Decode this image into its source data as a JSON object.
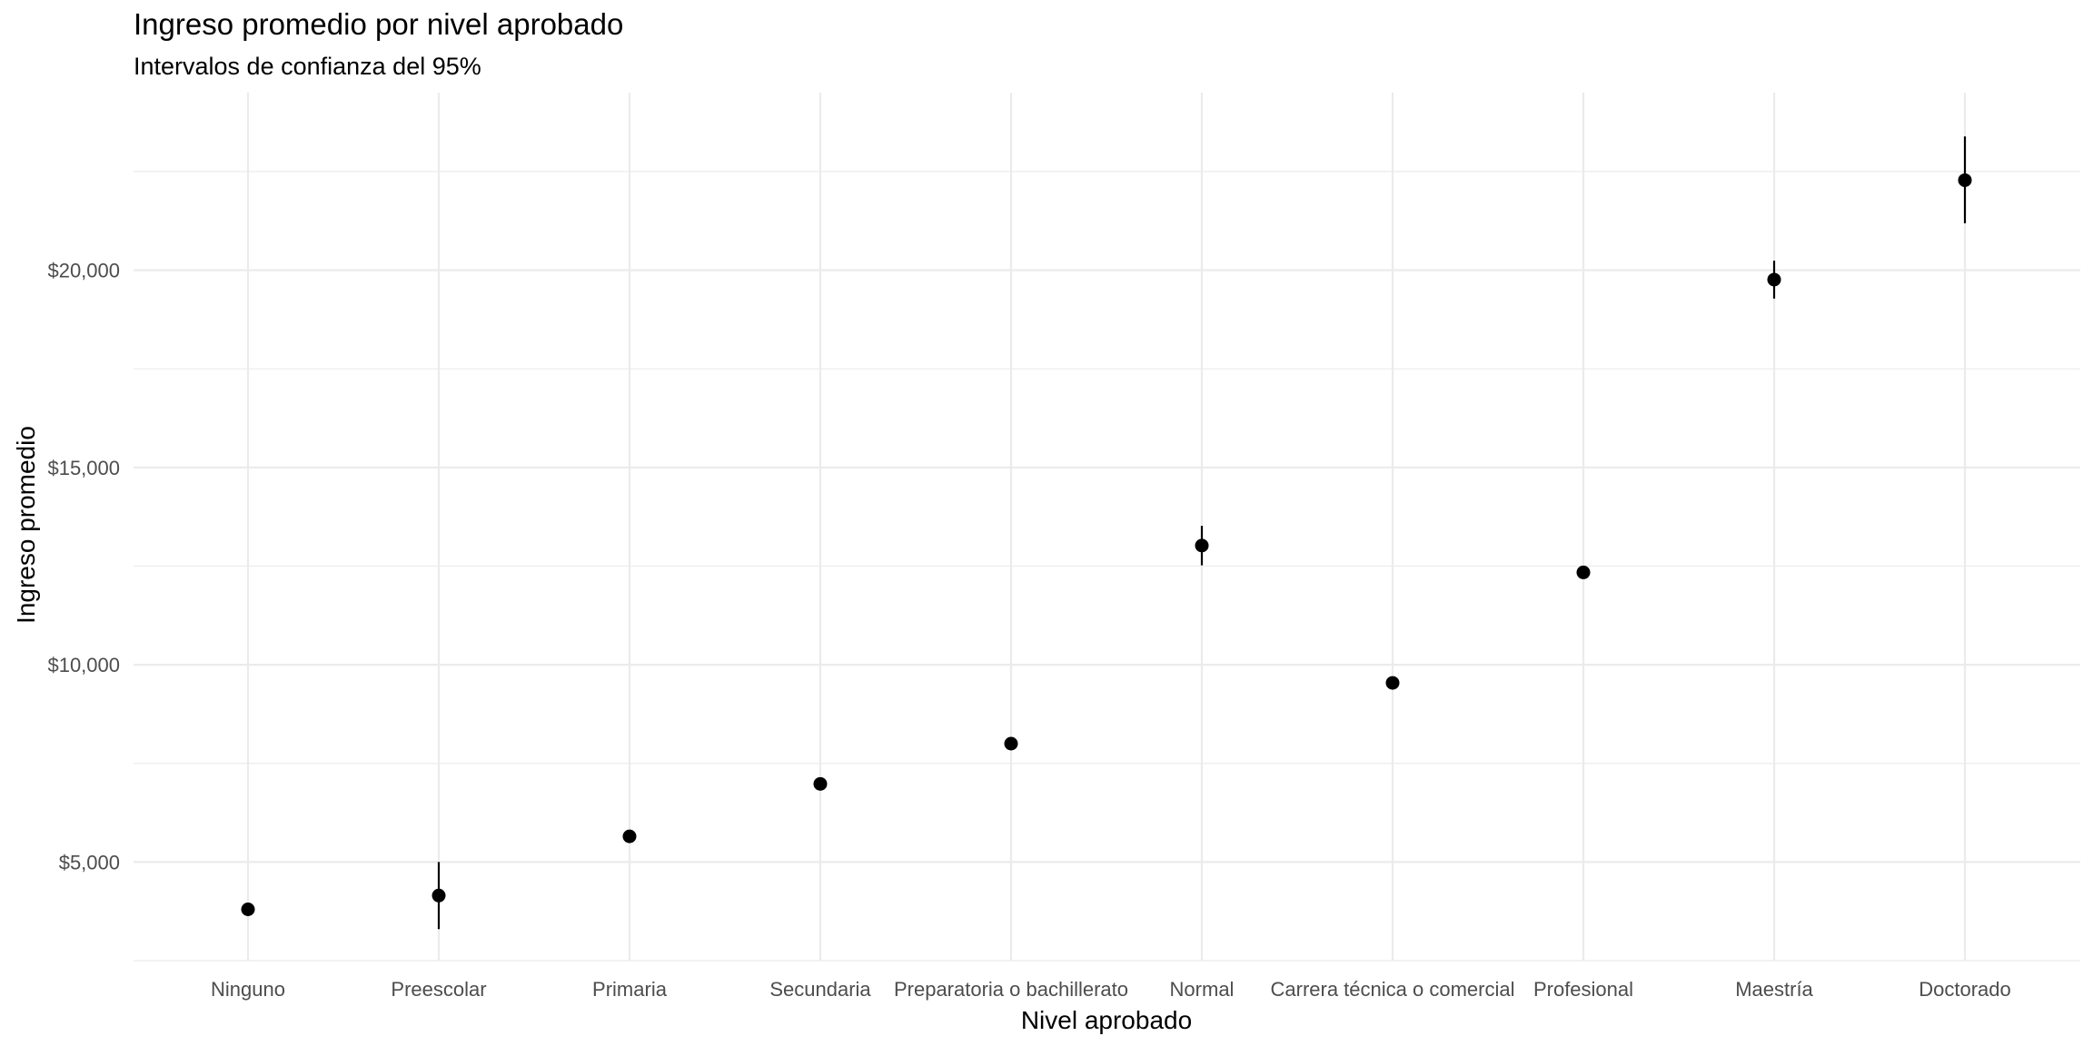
{
  "chart_data": {
    "type": "scatter",
    "title": "Ingreso promedio por nivel aprobado",
    "subtitle": "Intervalos de confianza del 95%",
    "xlabel": "Nivel aprobado",
    "ylabel": "Ingreso promedio",
    "categories": [
      "Ninguno",
      "Preescolar",
      "Primaria",
      "Secundaria",
      "Preparatoria o bachillerato",
      "Normal",
      "Carrera técnica o comercial",
      "Profesional",
      "Maestría",
      "Doctorado"
    ],
    "values": [
      3800,
      4150,
      5650,
      6980,
      8000,
      13020,
      9540,
      12340,
      19760,
      22280
    ],
    "ci_low": [
      3740,
      3300,
      5540,
      6900,
      7920,
      12520,
      9420,
      12230,
      19280,
      21190
    ],
    "ci_high": [
      3870,
      5000,
      5730,
      7050,
      8090,
      13520,
      9660,
      12450,
      20240,
      23390
    ],
    "ylim": [
      2500,
      24500
    ],
    "yticks": [
      5000,
      10000,
      15000,
      20000
    ],
    "ytick_labels": [
      "$5,000",
      "$10,000",
      "$15,000",
      "$20,000"
    ],
    "minor_yticks": [
      2500,
      7500,
      12500,
      17500,
      22500
    ],
    "grid": true,
    "colors": {
      "point": "#000000",
      "grid": "#ebebeb",
      "tick_text": "#4d4d4d"
    }
  }
}
